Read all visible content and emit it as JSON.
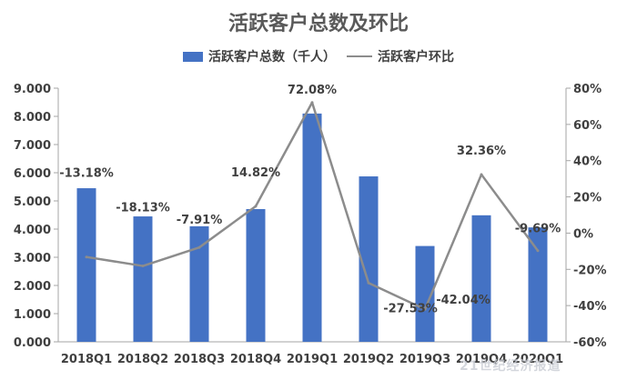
{
  "chart_data": {
    "type": "bar",
    "title": "活跃客户总数及环比",
    "categories": [
      "2018Q1",
      "2018Q2",
      "2018Q3",
      "2018Q4",
      "2019Q1",
      "2019Q2",
      "2019Q3",
      "2019Q4",
      "2020Q1"
    ],
    "series": [
      {
        "name": "活跃客户总数（千人）",
        "type": "bar",
        "axis": "left",
        "values": [
          5.45,
          4.45,
          4.1,
          4.71,
          8.1,
          5.87,
          3.4,
          4.49,
          4.06
        ]
      },
      {
        "name": "活跃客户环比",
        "type": "line",
        "axis": "right",
        "values": [
          -13.18,
          -18.13,
          -7.91,
          14.82,
          72.08,
          -27.53,
          -42.04,
          32.36,
          -9.69
        ],
        "labels": [
          "-13.18%",
          "-18.13%",
          "-7.91%",
          "14.82%",
          "72.08%",
          "-27.53%",
          "-42.04%",
          "32.36%",
          "-9.69%"
        ]
      }
    ],
    "ylim_left": [
      0,
      9
    ],
    "ylim_right": [
      -60,
      80
    ],
    "left_ticks": [
      "0.000",
      "1.000",
      "2.000",
      "3.000",
      "4.000",
      "5.000",
      "6.000",
      "7.000",
      "8.000",
      "9.000"
    ],
    "right_ticks": [
      "-60%",
      "-40%",
      "-20%",
      "0%",
      "20%",
      "40%",
      "60%",
      "80%"
    ],
    "grid": false,
    "legend_position": "top",
    "colors": {
      "bar": "#4472c4",
      "line": "#8c8c8c",
      "text": "#404040",
      "title": "#595959"
    }
  },
  "watermark": "21世纪经济报道"
}
